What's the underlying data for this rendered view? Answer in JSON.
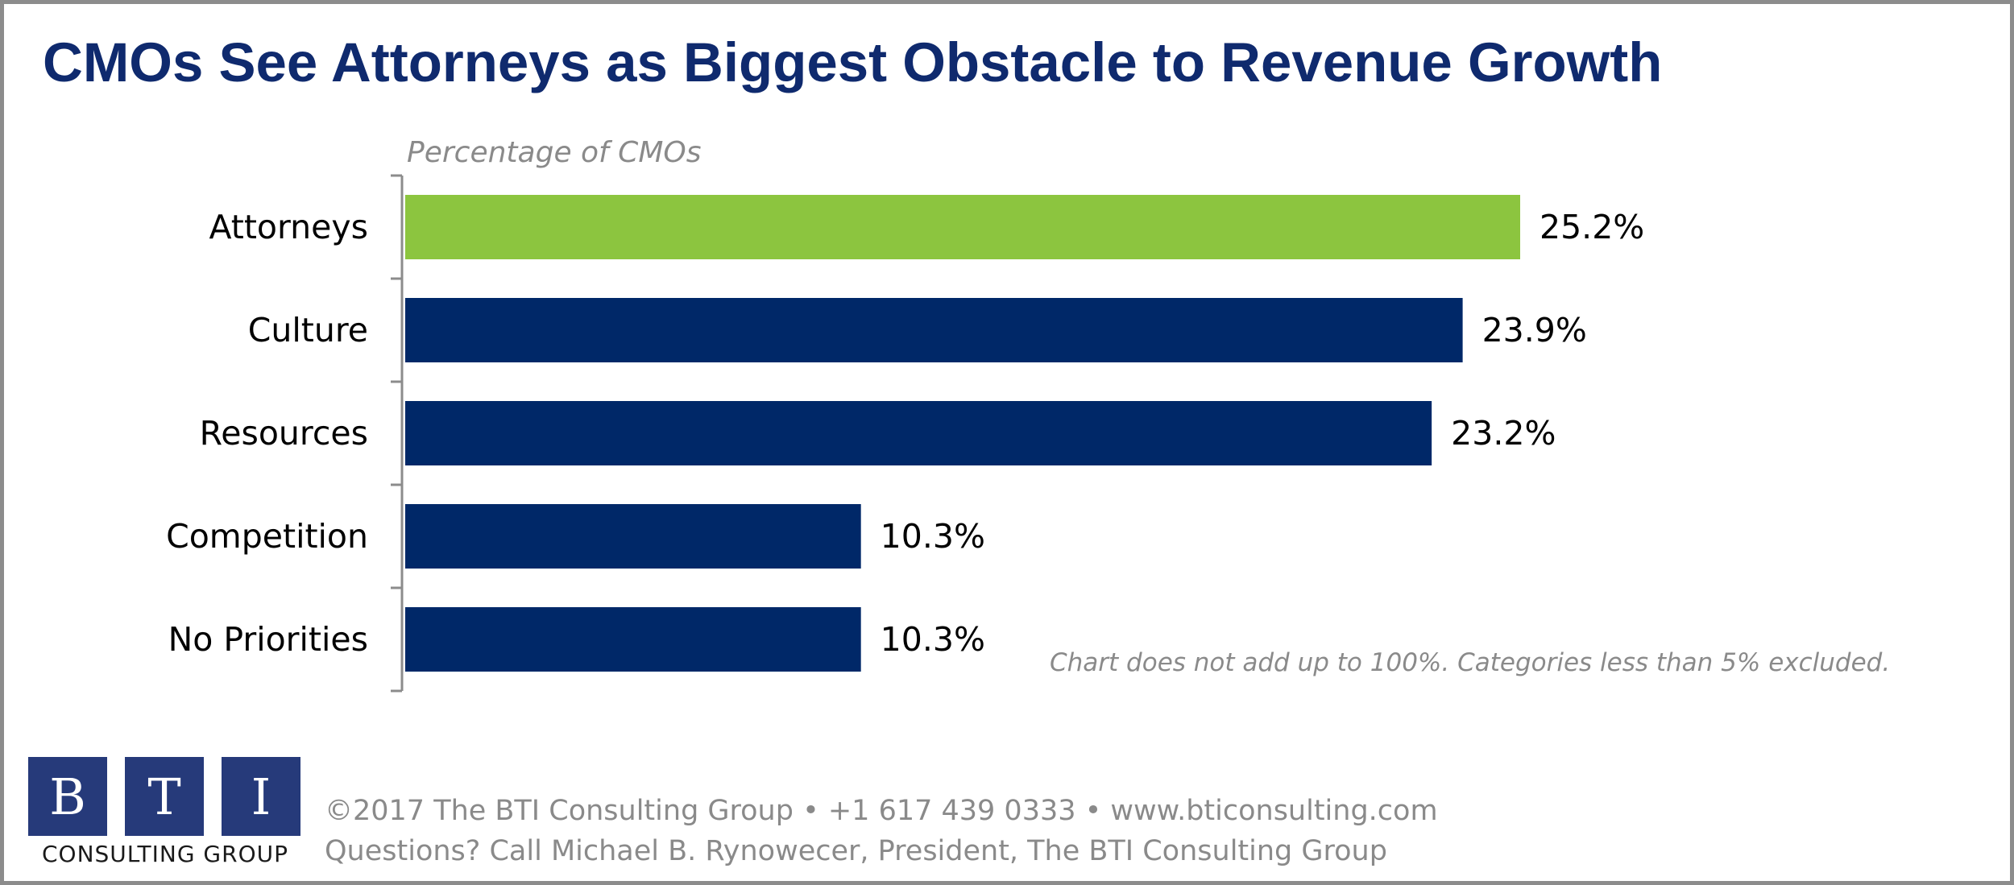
{
  "title": "CMOs See Attorneys as Biggest Obstacle to Revenue Growth",
  "colors": {
    "highlight": "#8cc53f",
    "bar": "#002868",
    "title": "#0f2a6e",
    "muted": "#8a8a8a"
  },
  "chart_data": {
    "type": "bar",
    "orientation": "horizontal",
    "axis_caption": "Percentage of CMOs",
    "categories": [
      "Attorneys",
      "Culture",
      "Resources",
      "Competition",
      "No Priorities"
    ],
    "values": [
      25.2,
      23.9,
      23.2,
      10.3,
      10.3
    ],
    "value_labels": [
      "25.2%",
      "23.9%",
      "23.2%",
      "10.3%",
      "10.3%"
    ],
    "highlighted_category": "Attorneys",
    "xlim": [
      0,
      40
    ],
    "grid": false,
    "legend": "none"
  },
  "note": "Chart does not add up to 100%. Categories less than 5% excluded.",
  "logo": {
    "letters": [
      "B",
      "T",
      "I"
    ],
    "subtitle": "CONSULTING GROUP"
  },
  "footer": {
    "line1": "©2017 The BTI Consulting Group  •  +1 617 439 0333  •  www.bticonsulting.com",
    "line2": "Questions? Call Michael B. Rynowecer, President, The BTI Consulting Group"
  }
}
